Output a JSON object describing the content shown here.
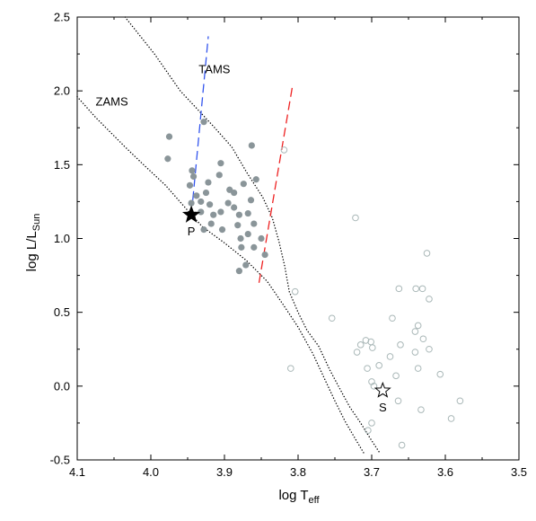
{
  "chart_data": {
    "type": "scatter",
    "title": "",
    "xlabel": {
      "main": "log T",
      "sub": "eff"
    },
    "ylabel": {
      "main": "log L/L",
      "sub": "Sun"
    },
    "xlim": [
      4.1,
      3.5
    ],
    "ylim": [
      -0.5,
      2.5
    ],
    "x_reversed": true,
    "xticks": [
      "4.1",
      "4.0",
      "3.9",
      "3.8",
      "3.7",
      "3.6",
      "3.5"
    ],
    "yticks": [
      "-0.5",
      "0.0",
      "0.5",
      "1.0",
      "1.5",
      "2.0",
      "2.5"
    ],
    "grid": false,
    "legend": "none",
    "series": [
      {
        "marker": "filled-circle",
        "color": "#8a9599",
        "points": [
          [
            3.975,
            1.69
          ],
          [
            3.977,
            1.54
          ],
          [
            3.928,
            1.79
          ],
          [
            3.944,
            1.46
          ],
          [
            3.942,
            1.42
          ],
          [
            3.947,
            1.36
          ],
          [
            3.922,
            1.38
          ],
          [
            3.907,
            1.43
          ],
          [
            3.905,
            1.51
          ],
          [
            3.925,
            1.31
          ],
          [
            3.938,
            1.29
          ],
          [
            3.945,
            1.24
          ],
          [
            3.932,
            1.25
          ],
          [
            3.932,
            1.18
          ],
          [
            3.92,
            1.23
          ],
          [
            3.915,
            1.16
          ],
          [
            3.918,
            1.1
          ],
          [
            3.905,
            1.18
          ],
          [
            3.895,
            1.24
          ],
          [
            3.893,
            1.33
          ],
          [
            3.887,
            1.31
          ],
          [
            3.887,
            1.21
          ],
          [
            3.88,
            1.16
          ],
          [
            3.882,
            1.09
          ],
          [
            3.903,
            1.06
          ],
          [
            3.874,
            1.37
          ],
          [
            3.864,
            1.26
          ],
          [
            3.868,
            1.17
          ],
          [
            3.86,
            1.1
          ],
          [
            3.868,
            1.03
          ],
          [
            3.878,
            1.0
          ],
          [
            3.877,
            0.94
          ],
          [
            3.86,
            0.94
          ],
          [
            3.85,
            1.0
          ],
          [
            3.845,
            0.89
          ],
          [
            3.871,
            0.82
          ],
          [
            3.88,
            0.78
          ],
          [
            3.863,
            1.63
          ],
          [
            3.857,
            1.4
          ],
          [
            3.928,
            1.06
          ]
        ]
      },
      {
        "marker": "open-circle",
        "color": "#aab8b8",
        "points": [
          [
            3.819,
            1.6
          ],
          [
            3.722,
            1.14
          ],
          [
            3.625,
            0.9
          ],
          [
            3.804,
            0.64
          ],
          [
            3.663,
            0.66
          ],
          [
            3.64,
            0.66
          ],
          [
            3.631,
            0.66
          ],
          [
            3.622,
            0.59
          ],
          [
            3.754,
            0.46
          ],
          [
            3.672,
            0.46
          ],
          [
            3.637,
            0.41
          ],
          [
            3.641,
            0.37
          ],
          [
            3.708,
            0.31
          ],
          [
            3.715,
            0.28
          ],
          [
            3.701,
            0.3
          ],
          [
            3.699,
            0.26
          ],
          [
            3.72,
            0.23
          ],
          [
            3.661,
            0.28
          ],
          [
            3.63,
            0.32
          ],
          [
            3.622,
            0.25
          ],
          [
            3.675,
            0.2
          ],
          [
            3.641,
            0.23
          ],
          [
            3.706,
            0.12
          ],
          [
            3.69,
            0.14
          ],
          [
            3.667,
            0.07
          ],
          [
            3.637,
            0.12
          ],
          [
            3.607,
            0.08
          ],
          [
            3.81,
            0.12
          ],
          [
            3.7,
            0.03
          ],
          [
            3.697,
            0.0
          ],
          [
            3.664,
            -0.1
          ],
          [
            3.633,
            -0.16
          ],
          [
            3.592,
            -0.22
          ],
          [
            3.58,
            -0.1
          ],
          [
            3.7,
            -0.25
          ],
          [
            3.705,
            -0.3
          ],
          [
            3.659,
            -0.4
          ]
        ]
      }
    ],
    "highlighted": [
      {
        "label": "P",
        "x": 3.945,
        "y": 1.16,
        "marker": "filled-star"
      },
      {
        "label": "S",
        "x": 3.685,
        "y": -0.03,
        "marker": "open-star"
      }
    ],
    "curves": [
      {
        "label": "TAMS",
        "style": "dotted",
        "color": "#000000",
        "points": [
          [
            4.035,
            2.5
          ],
          [
            3.995,
            2.25
          ],
          [
            3.96,
            2.0
          ],
          [
            3.915,
            1.76
          ],
          [
            3.89,
            1.62
          ],
          [
            3.87,
            1.45
          ],
          [
            3.848,
            1.28
          ],
          [
            3.835,
            1.14
          ],
          [
            3.826,
            0.98
          ],
          [
            3.818,
            0.81
          ],
          [
            3.812,
            0.64
          ],
          [
            3.8,
            0.5
          ],
          [
            3.788,
            0.38
          ],
          [
            3.772,
            0.27
          ],
          [
            3.757,
            0.11
          ],
          [
            3.742,
            -0.03
          ],
          [
            3.73,
            -0.14
          ],
          [
            3.715,
            -0.25
          ],
          [
            3.7,
            -0.37
          ],
          [
            3.688,
            -0.46
          ]
        ]
      },
      {
        "label": "ZAMS",
        "style": "dotted",
        "color": "#000000",
        "points": [
          [
            4.1,
            1.96
          ],
          [
            4.075,
            1.82
          ],
          [
            4.035,
            1.62
          ],
          [
            4.01,
            1.5
          ],
          [
            3.98,
            1.36
          ],
          [
            3.95,
            1.19
          ],
          [
            3.93,
            1.08
          ],
          [
            3.9,
            0.97
          ],
          [
            3.87,
            0.85
          ],
          [
            3.842,
            0.71
          ],
          [
            3.82,
            0.55
          ],
          [
            3.8,
            0.4
          ],
          [
            3.78,
            0.22
          ],
          [
            3.765,
            0.06
          ],
          [
            3.75,
            -0.1
          ],
          [
            3.736,
            -0.24
          ],
          [
            3.722,
            -0.36
          ],
          [
            3.71,
            -0.46
          ]
        ]
      },
      {
        "style": "dashed",
        "color": "#3355ee",
        "points": [
          [
            3.943,
            1.26
          ],
          [
            3.922,
            2.37
          ]
        ]
      },
      {
        "style": "dashed",
        "color": "#ee2222",
        "points": [
          [
            3.853,
            0.7
          ],
          [
            3.808,
            2.02
          ]
        ]
      }
    ],
    "annotations": [
      {
        "text": "TAMS",
        "x": 3.935,
        "y": 2.12
      },
      {
        "text": "ZAMS",
        "x": 4.075,
        "y": 1.9
      }
    ]
  }
}
